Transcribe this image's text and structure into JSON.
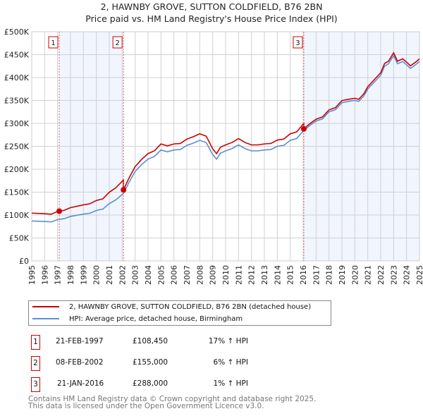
{
  "chart_data": {
    "type": "line",
    "title": "2, HAWNBY GROVE, SUTTON COLDFIELD, B76 2BN",
    "subtitle": "Price paid vs. HM Land Registry's House Price Index (HPI)",
    "xlim": [
      1995,
      2025
    ],
    "ylim": [
      0,
      500000
    ],
    "grid": true,
    "x_ticks": [
      "1995",
      "1996",
      "1997",
      "1998",
      "1999",
      "2000",
      "2001",
      "2002",
      "2003",
      "2004",
      "2005",
      "2006",
      "2007",
      "2008",
      "2009",
      "2010",
      "2011",
      "2012",
      "2013",
      "2014",
      "2015",
      "2016",
      "2017",
      "2018",
      "2019",
      "2020",
      "2021",
      "2022",
      "2023",
      "2024",
      "2025"
    ],
    "y_ticks": [
      {
        "value": 0,
        "label": "£0"
      },
      {
        "value": 50000,
        "label": "£50K"
      },
      {
        "value": 100000,
        "label": "£100K"
      },
      {
        "value": 150000,
        "label": "£150K"
      },
      {
        "value": 200000,
        "label": "£200K"
      },
      {
        "value": 250000,
        "label": "£250K"
      },
      {
        "value": 300000,
        "label": "£300K"
      },
      {
        "value": 350000,
        "label": "£350K"
      },
      {
        "value": 400000,
        "label": "£400K"
      },
      {
        "value": 450000,
        "label": "£450K"
      },
      {
        "value": 500000,
        "label": "£500K"
      }
    ],
    "hpi_series": {
      "name": "HPI: Average price, detached house, Birmingham",
      "color": "#5b8fd0",
      "points": [
        [
          1995,
          87
        ],
        [
          1996,
          86
        ],
        [
          1996.5,
          85
        ],
        [
          1997,
          90
        ],
        [
          1997.5,
          92
        ],
        [
          1998,
          97
        ],
        [
          1999,
          102
        ],
        [
          1999.5,
          104
        ],
        [
          2000,
          110
        ],
        [
          2000.5,
          113
        ],
        [
          2001,
          125
        ],
        [
          2001.5,
          133
        ],
        [
          2002,
          145
        ],
        [
          2002.1,
          147
        ],
        [
          2002.5,
          170
        ],
        [
          2003,
          195
        ],
        [
          2003.5,
          210
        ],
        [
          2004,
          222
        ],
        [
          2004.5,
          228
        ],
        [
          2005,
          242
        ],
        [
          2005.5,
          238
        ],
        [
          2006,
          242
        ],
        [
          2006.5,
          243
        ],
        [
          2007,
          252
        ],
        [
          2007.5,
          257
        ],
        [
          2008,
          263
        ],
        [
          2008.5,
          258
        ],
        [
          2009,
          232
        ],
        [
          2009.3,
          222
        ],
        [
          2009.6,
          235
        ],
        [
          2010,
          240
        ],
        [
          2010.5,
          245
        ],
        [
          2011,
          253
        ],
        [
          2011.5,
          245
        ],
        [
          2012,
          240
        ],
        [
          2012.5,
          240
        ],
        [
          2013,
          242
        ],
        [
          2013.5,
          243
        ],
        [
          2014,
          250
        ],
        [
          2014.5,
          252
        ],
        [
          2015,
          263
        ],
        [
          2015.5,
          267
        ],
        [
          2016,
          283
        ],
        [
          2016.5,
          295
        ],
        [
          2017,
          305
        ],
        [
          2017.5,
          310
        ],
        [
          2018,
          325
        ],
        [
          2018.5,
          330
        ],
        [
          2019,
          345
        ],
        [
          2019.5,
          348
        ],
        [
          2020,
          350
        ],
        [
          2020.3,
          348
        ],
        [
          2020.7,
          360
        ],
        [
          2021,
          375
        ],
        [
          2021.5,
          390
        ],
        [
          2022,
          405
        ],
        [
          2022.3,
          425
        ],
        [
          2022.6,
          430
        ],
        [
          2023,
          448
        ],
        [
          2023.3,
          430
        ],
        [
          2023.7,
          435
        ],
        [
          2024,
          428
        ],
        [
          2024.3,
          420
        ],
        [
          2024.7,
          428
        ],
        [
          2025,
          435
        ]
      ]
    },
    "price_series": {
      "name": "2, HAWNBY GROVE, SUTTON COLDFIELD, B76 2BN (detached house)",
      "color": "#cc0000"
    },
    "sales": [
      {
        "id": "1",
        "x": 1997.13,
        "date": "21-FEB-1997",
        "price": 108450,
        "price_label": "£108,450",
        "hpi_label": "17% ↑ HPI"
      },
      {
        "id": "2",
        "x": 2002.1,
        "date": "08-FEB-2002",
        "price": 155000,
        "price_label": "£155,000",
        "hpi_label": "6% ↑ HPI"
      },
      {
        "id": "3",
        "x": 2016.05,
        "date": "21-JAN-2016",
        "price": 288000,
        "price_label": "£288,000",
        "hpi_label": "1% ↑ HPI"
      }
    ],
    "shaded_ranges": [
      [
        1997.13,
        2002.1
      ],
      [
        2016.05,
        2025
      ]
    ]
  },
  "footer": [
    "Contains HM Land Registry data © Crown copyright and database right 2025.",
    "This data is licensed under the Open Government Licence v3.0."
  ]
}
